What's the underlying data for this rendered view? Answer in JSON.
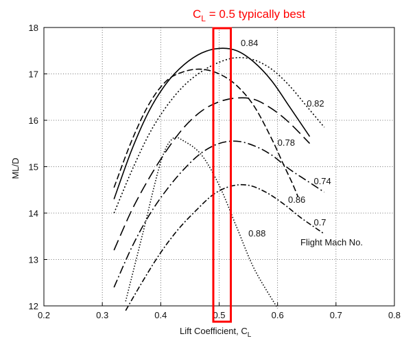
{
  "chart_data": {
    "type": "line",
    "title": "",
    "xlabel_main": "Lift Coefficient, C",
    "xlabel_sub": "L",
    "ylabel": "ML/D",
    "xlim": [
      0.2,
      0.8
    ],
    "ylim": [
      12,
      18
    ],
    "x_ticks": [
      "0.2",
      "0.3",
      "0.4",
      "0.5",
      "0.6",
      "0.7",
      "0.8"
    ],
    "y_ticks": [
      "12",
      "13",
      "14",
      "15",
      "16",
      "17",
      "18"
    ],
    "grid": true,
    "legend_title": "Flight Mach No.",
    "highlight": {
      "title_main": "C",
      "title_sub": "L",
      "title_rest": " = 0.5 typically best",
      "x_range": [
        0.49,
        0.52
      ],
      "color": "#ff0000"
    },
    "series": [
      {
        "name": "0.84",
        "dash": "",
        "x": [
          0.32,
          0.35,
          0.38,
          0.41,
          0.44,
          0.47,
          0.5,
          0.53,
          0.56,
          0.59,
          0.62,
          0.655
        ],
        "y": [
          14.3,
          15.35,
          16.2,
          16.8,
          17.2,
          17.45,
          17.55,
          17.5,
          17.25,
          16.85,
          16.3,
          15.65
        ],
        "label_x": 0.537,
        "label_y": 17.6
      },
      {
        "name": "0.82",
        "dash": "2 3",
        "x": [
          0.32,
          0.35,
          0.38,
          0.41,
          0.44,
          0.47,
          0.5,
          0.53,
          0.56,
          0.59,
          0.62,
          0.65,
          0.68
        ],
        "y": [
          14.0,
          14.9,
          15.7,
          16.3,
          16.75,
          17.05,
          17.25,
          17.35,
          17.3,
          17.1,
          16.75,
          16.3,
          15.85
        ],
        "label_x": 0.65,
        "label_y": 16.3
      },
      {
        "name": "0.86",
        "dash": "9 4",
        "x": [
          0.32,
          0.35,
          0.38,
          0.41,
          0.44,
          0.47,
          0.5,
          0.53,
          0.56,
          0.59,
          0.61,
          0.625,
          0.635
        ],
        "y": [
          14.55,
          15.55,
          16.35,
          16.85,
          17.05,
          17.1,
          17.0,
          16.75,
          16.3,
          15.6,
          15.05,
          14.65,
          14.35
        ],
        "label_x": 0.618,
        "label_y": 14.22
      },
      {
        "name": "0.78",
        "dash": "16 7",
        "x": [
          0.32,
          0.35,
          0.38,
          0.41,
          0.44,
          0.47,
          0.5,
          0.53,
          0.56,
          0.59,
          0.62,
          0.655
        ],
        "y": [
          13.2,
          14.05,
          14.75,
          15.35,
          15.85,
          16.2,
          16.4,
          16.48,
          16.45,
          16.25,
          15.95,
          15.5
        ],
        "label_x": 0.6,
        "label_y": 15.45
      },
      {
        "name": "0.74",
        "dash": "12 4 2 4",
        "x": [
          0.32,
          0.35,
          0.38,
          0.41,
          0.44,
          0.47,
          0.5,
          0.53,
          0.56,
          0.59,
          0.62,
          0.65,
          0.68
        ],
        "y": [
          12.4,
          13.25,
          13.95,
          14.5,
          14.95,
          15.3,
          15.5,
          15.55,
          15.45,
          15.25,
          14.95,
          14.7,
          14.45
        ],
        "label_x": 0.662,
        "label_y": 14.62
      },
      {
        "name": "0.7",
        "dash": "8 3 2 3",
        "x": [
          0.34,
          0.37,
          0.4,
          0.43,
          0.46,
          0.49,
          0.52,
          0.55,
          0.58,
          0.61,
          0.64,
          0.68
        ],
        "y": [
          11.9,
          12.55,
          13.15,
          13.65,
          14.05,
          14.4,
          14.58,
          14.6,
          14.45,
          14.2,
          13.9,
          13.55
        ],
        "label_x": 0.662,
        "label_y": 13.73
      },
      {
        "name": "0.88",
        "dash": "1.5 2.5",
        "x": [
          0.34,
          0.37,
          0.4,
          0.42,
          0.44,
          0.47,
          0.5,
          0.53,
          0.56,
          0.6
        ],
        "y": [
          12.1,
          13.6,
          15.1,
          15.6,
          15.55,
          15.25,
          14.6,
          13.7,
          12.8,
          11.95
        ],
        "label_x": 0.55,
        "label_y": 13.5
      }
    ]
  }
}
